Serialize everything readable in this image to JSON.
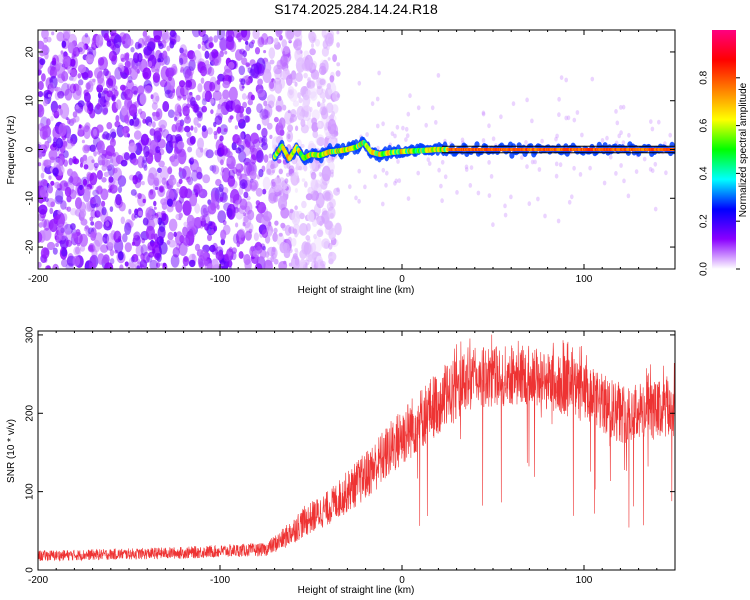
{
  "title": "S174.2025.284.14.24.R18",
  "chart_data": [
    {
      "type": "heatmap",
      "title": "S174.2025.284.14.24.R18",
      "xlabel": "Height of straight line (km)",
      "ylabel": "Frequency (Hz)",
      "xlim": [
        -200,
        150
      ],
      "ylim": [
        -24.5,
        24.5
      ],
      "xticks": [
        -200,
        -100,
        0,
        100
      ],
      "yticks": [
        -20,
        -10,
        0,
        10,
        20
      ],
      "colorbar": {
        "label": "Normalized spectral amplitude",
        "range": [
          0,
          1
        ],
        "ticks": [
          "0.0",
          "0.2",
          "0.4",
          "0.6",
          "0.8"
        ],
        "tick_values": [
          0.0,
          0.2,
          0.4,
          0.6,
          0.8
        ],
        "colors": [
          "#ffffff",
          "#8a00ff",
          "#0000ff",
          "#00ffff",
          "#00ff00",
          "#ffff00",
          "#ff8000",
          "#ff0000",
          "#ff0080"
        ]
      },
      "noise_region_end_km": -47,
      "signal_track": [
        {
          "x": -70,
          "y": -1.5
        },
        {
          "x": -66,
          "y": 0.8
        },
        {
          "x": -62,
          "y": -2.0
        },
        {
          "x": -58,
          "y": 0.5
        },
        {
          "x": -54,
          "y": -1.8
        },
        {
          "x": -50,
          "y": -1.0
        },
        {
          "x": -45,
          "y": -1.2
        },
        {
          "x": -40,
          "y": -0.5
        },
        {
          "x": -35,
          "y": -0.3
        },
        {
          "x": -30,
          "y": 0.0
        },
        {
          "x": -25,
          "y": 0.5
        },
        {
          "x": -21,
          "y": 1.5
        },
        {
          "x": -17,
          "y": -0.5
        },
        {
          "x": -12,
          "y": -1.0
        },
        {
          "x": -6,
          "y": -0.6
        },
        {
          "x": 0,
          "y": -0.4
        },
        {
          "x": 6,
          "y": -0.3
        },
        {
          "x": 12,
          "y": -0.2
        },
        {
          "x": 18,
          "y": 0.0
        },
        {
          "x": 25,
          "y": 0.0
        },
        {
          "x": 150,
          "y": 0.0
        }
      ]
    },
    {
      "type": "line",
      "xlabel": "Height of straight line (km)",
      "ylabel": "SNR (10 * v/v)",
      "xlim": [
        -200,
        150
      ],
      "ylim": [
        0,
        305
      ],
      "xticks": [
        -200,
        -100,
        0,
        100
      ],
      "yticks": [
        0,
        100,
        200,
        300
      ],
      "color": "#ee3333",
      "envelope": [
        {
          "x": -200,
          "mean": 18,
          "spread": 10
        },
        {
          "x": -160,
          "mean": 20,
          "spread": 10
        },
        {
          "x": -120,
          "mean": 22,
          "spread": 11
        },
        {
          "x": -90,
          "mean": 25,
          "spread": 12
        },
        {
          "x": -75,
          "mean": 26,
          "spread": 12
        },
        {
          "x": -65,
          "mean": 40,
          "spread": 20
        },
        {
          "x": -55,
          "mean": 60,
          "spread": 28
        },
        {
          "x": -40,
          "mean": 80,
          "spread": 32
        },
        {
          "x": -20,
          "mean": 120,
          "spread": 45
        },
        {
          "x": 0,
          "mean": 170,
          "spread": 55
        },
        {
          "x": 20,
          "mean": 215,
          "spread": 60
        },
        {
          "x": 40,
          "mean": 245,
          "spread": 55
        },
        {
          "x": 70,
          "mean": 250,
          "spread": 55
        },
        {
          "x": 100,
          "mean": 225,
          "spread": 55
        },
        {
          "x": 120,
          "mean": 200,
          "spread": 55
        },
        {
          "x": 150,
          "mean": 205,
          "spread": 55
        }
      ]
    }
  ]
}
